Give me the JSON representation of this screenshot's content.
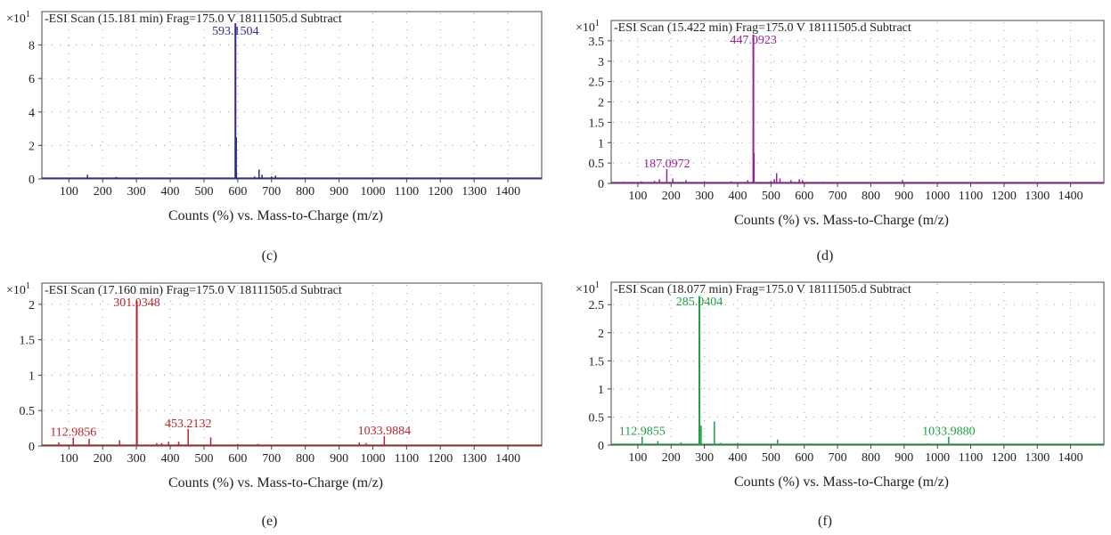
{
  "chart_data": [
    {
      "type": "bar",
      "panel_label": "(c)",
      "title": "-ESI Scan (15.181 min) Frag=175.0 V 18111505.d Subtract",
      "xlabel": "Counts (%) vs. Mass-to-Charge (m/z)",
      "ylabel": "",
      "y_multiplier": "×10",
      "y_multiplier_exp": "1",
      "xlim": [
        20,
        1500
      ],
      "ylim": [
        0,
        10
      ],
      "x_ticks": [
        100,
        200,
        300,
        400,
        500,
        600,
        700,
        800,
        900,
        1000,
        1100,
        1200,
        1300,
        1400
      ],
      "y_ticks": [
        0,
        2,
        4,
        6,
        8
      ],
      "y_tick_labels": [
        "0",
        "2",
        "4",
        "6",
        "8"
      ],
      "grid": true,
      "color": "#2b2b8e",
      "peaks": [
        {
          "x": 55,
          "y": 0.05
        },
        {
          "x": 95,
          "y": 0.08
        },
        {
          "x": 155,
          "y": 0.25
        },
        {
          "x": 240,
          "y": 0.12
        },
        {
          "x": 285,
          "y": 0.08
        },
        {
          "x": 370,
          "y": 0.05
        },
        {
          "x": 450,
          "y": 0.05
        },
        {
          "x": 540,
          "y": 0.06
        },
        {
          "x": 595,
          "y": 2.5
        },
        {
          "x": 593.1504,
          "y": 9.3
        },
        {
          "x": 596,
          "y": 0.4
        },
        {
          "x": 650,
          "y": 0.15
        },
        {
          "x": 663,
          "y": 0.55
        },
        {
          "x": 672,
          "y": 0.25
        },
        {
          "x": 700,
          "y": 0.15
        },
        {
          "x": 712,
          "y": 0.2
        },
        {
          "x": 725,
          "y": 0.08
        },
        {
          "x": 780,
          "y": 0.05
        },
        {
          "x": 860,
          "y": 0.04
        },
        {
          "x": 980,
          "y": 0.04
        },
        {
          "x": 1120,
          "y": 0.03
        },
        {
          "x": 1300,
          "y": 0.03
        }
      ],
      "annotations": [
        {
          "x": 593.1504,
          "y": 9.3,
          "text": "593.1504"
        }
      ]
    },
    {
      "type": "bar",
      "panel_label": "(d)",
      "title": "-ESI Scan (15.422 min) Frag=175.0 V 18111505.d Subtract",
      "xlabel": "Counts (%) vs. Mass-to-Charge (m/z)",
      "ylabel": "",
      "y_multiplier": "×10",
      "y_multiplier_exp": "1",
      "xlim": [
        20,
        1500
      ],
      "ylim": [
        0,
        4.0
      ],
      "x_ticks": [
        100,
        200,
        300,
        400,
        500,
        600,
        700,
        800,
        900,
        1000,
        1100,
        1200,
        1300,
        1400
      ],
      "y_ticks": [
        0,
        0.5,
        1,
        1.5,
        2,
        2.5,
        3,
        3.5
      ],
      "y_tick_labels": [
        "0",
        "0.5",
        "1",
        "1.5",
        "2",
        "2.5",
        "3",
        "3.5"
      ],
      "grid": true,
      "color": "#9b1f9b",
      "peaks": [
        {
          "x": 60,
          "y": 0.04
        },
        {
          "x": 110,
          "y": 0.05
        },
        {
          "x": 150,
          "y": 0.06
        },
        {
          "x": 165,
          "y": 0.1
        },
        {
          "x": 187.0972,
          "y": 0.35
        },
        {
          "x": 205,
          "y": 0.12
        },
        {
          "x": 245,
          "y": 0.08
        },
        {
          "x": 300,
          "y": 0.05
        },
        {
          "x": 380,
          "y": 0.05
        },
        {
          "x": 430,
          "y": 0.08
        },
        {
          "x": 447.0923,
          "y": 3.65
        },
        {
          "x": 449,
          "y": 0.75
        },
        {
          "x": 500,
          "y": 0.06
        },
        {
          "x": 510,
          "y": 0.1
        },
        {
          "x": 517,
          "y": 0.25
        },
        {
          "x": 527,
          "y": 0.12
        },
        {
          "x": 560,
          "y": 0.08
        },
        {
          "x": 585,
          "y": 0.1
        },
        {
          "x": 595,
          "y": 0.08
        },
        {
          "x": 660,
          "y": 0.04
        },
        {
          "x": 895,
          "y": 0.08
        },
        {
          "x": 1100,
          "y": 0.03
        },
        {
          "x": 1250,
          "y": 0.03
        }
      ],
      "annotations": [
        {
          "x": 447.0923,
          "y": 3.65,
          "text": "447.0923"
        },
        {
          "x": 187.0972,
          "y": 0.35,
          "text": "187.0972"
        }
      ]
    },
    {
      "type": "bar",
      "panel_label": "(e)",
      "title": "-ESI Scan (17.160 min) Frag=175.0 V 18111505.d Subtract",
      "xlabel": "Counts (%) vs. Mass-to-Charge (m/z)",
      "ylabel": "",
      "y_multiplier": "×10",
      "y_multiplier_exp": "1",
      "xlim": [
        20,
        1500
      ],
      "ylim": [
        0,
        2.3
      ],
      "x_ticks": [
        100,
        200,
        300,
        400,
        500,
        600,
        700,
        800,
        900,
        1000,
        1100,
        1200,
        1300,
        1400
      ],
      "y_ticks": [
        0,
        0.5,
        1,
        1.5,
        2
      ],
      "y_tick_labels": [
        "0",
        "0.5",
        "1",
        "1.5",
        "2"
      ],
      "grid": true,
      "color": "#b5262b",
      "peaks": [
        {
          "x": 70,
          "y": 0.05
        },
        {
          "x": 112.9856,
          "y": 0.12
        },
        {
          "x": 160,
          "y": 0.1
        },
        {
          "x": 250,
          "y": 0.08
        },
        {
          "x": 301.0348,
          "y": 2.05
        },
        {
          "x": 302,
          "y": 0.75
        },
        {
          "x": 360,
          "y": 0.04
        },
        {
          "x": 375,
          "y": 0.04
        },
        {
          "x": 395,
          "y": 0.06
        },
        {
          "x": 425,
          "y": 0.06
        },
        {
          "x": 453.2132,
          "y": 0.24
        },
        {
          "x": 520,
          "y": 0.12
        },
        {
          "x": 600,
          "y": 0.03
        },
        {
          "x": 660,
          "y": 0.03
        },
        {
          "x": 960,
          "y": 0.05
        },
        {
          "x": 980,
          "y": 0.04
        },
        {
          "x": 1033.9884,
          "y": 0.14
        },
        {
          "x": 1100,
          "y": 0.02
        }
      ],
      "annotations": [
        {
          "x": 301.0348,
          "y": 2.05,
          "text": "301.0348"
        },
        {
          "x": 112.9856,
          "y": 0.12,
          "text": "112.9856"
        },
        {
          "x": 453.2132,
          "y": 0.24,
          "text": "453.2132"
        },
        {
          "x": 1033.9884,
          "y": 0.14,
          "text": "1033.9884"
        }
      ]
    },
    {
      "type": "bar",
      "panel_label": "(f)",
      "title": "-ESI Scan (18.077 min) Frag=175.0 V 18111505.d Subtract",
      "xlabel": "Counts (%) vs. Mass-to-Charge (m/z)",
      "ylabel": "",
      "y_multiplier": "×10",
      "y_multiplier_exp": "1",
      "xlim": [
        20,
        1500
      ],
      "ylim": [
        0,
        2.9
      ],
      "x_ticks": [
        100,
        200,
        300,
        400,
        500,
        600,
        700,
        800,
        900,
        1000,
        1100,
        1200,
        1300,
        1400
      ],
      "y_ticks": [
        0,
        0.5,
        1,
        1.5,
        2,
        2.5
      ],
      "y_tick_labels": [
        "0",
        "0.5",
        "1",
        "1.5",
        "2",
        "2.5"
      ],
      "grid": true,
      "color": "#1e9e45",
      "peaks": [
        {
          "x": 60,
          "y": 0.03
        },
        {
          "x": 112.9855,
          "y": 0.15
        },
        {
          "x": 160,
          "y": 0.07
        },
        {
          "x": 230,
          "y": 0.05
        },
        {
          "x": 285.0404,
          "y": 2.65
        },
        {
          "x": 290,
          "y": 0.35
        },
        {
          "x": 330,
          "y": 0.42
        },
        {
          "x": 350,
          "y": 0.04
        },
        {
          "x": 400,
          "y": 0.04
        },
        {
          "x": 520,
          "y": 0.1
        },
        {
          "x": 620,
          "y": 0.03
        },
        {
          "x": 900,
          "y": 0.03
        },
        {
          "x": 970,
          "y": 0.03
        },
        {
          "x": 1033.988,
          "y": 0.15
        },
        {
          "x": 1100,
          "y": 0.02
        }
      ],
      "annotations": [
        {
          "x": 285.0404,
          "y": 2.65,
          "text": "285.0404"
        },
        {
          "x": 112.9855,
          "y": 0.15,
          "text": "112.9855"
        },
        {
          "x": 1033.988,
          "y": 0.15,
          "text": "1033.9880"
        }
      ]
    }
  ]
}
